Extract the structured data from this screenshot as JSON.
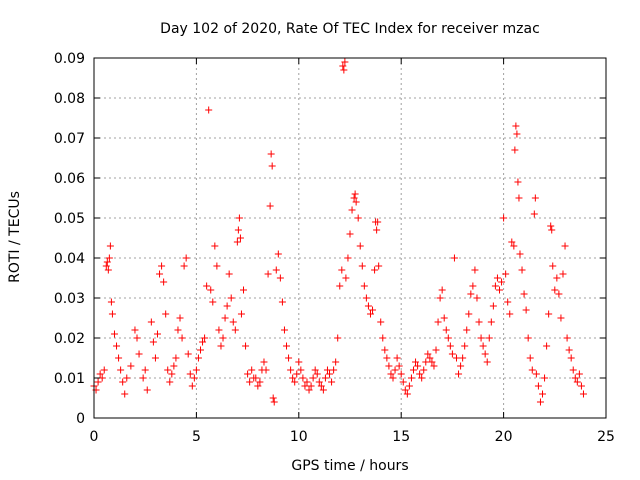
{
  "chart_data": {
    "type": "scatter",
    "title": "Day 102 of 2020, Rate Of TEC Index for receiver mzac",
    "xlabel": "GPS time / hours",
    "ylabel": "ROTI / TECUs",
    "xlim": [
      0,
      25
    ],
    "ylim": [
      0,
      0.09
    ],
    "xticks": [
      0,
      5,
      10,
      15,
      20,
      25
    ],
    "yticks": [
      0,
      0.01,
      0.02,
      0.03,
      0.04,
      0.05,
      0.06,
      0.07,
      0.08,
      0.09
    ],
    "xtick_labels": [
      "0",
      "5",
      "10",
      "15",
      "20",
      "25"
    ],
    "ytick_labels": [
      "0",
      "0.01",
      "0.02",
      "0.03",
      "0.04",
      "0.05",
      "0.06",
      "0.07",
      "0.08",
      "0.09"
    ],
    "grid": true,
    "marker": "plus",
    "color": "#ff0000",
    "series": [
      {
        "points": [
          [
            0.0,
            0.008
          ],
          [
            0.1,
            0.007
          ],
          [
            0.2,
            0.009
          ],
          [
            0.3,
            0.011
          ],
          [
            0.4,
            0.01
          ],
          [
            0.5,
            0.012
          ],
          [
            0.6,
            0.038
          ],
          [
            0.65,
            0.039
          ],
          [
            0.7,
            0.037
          ],
          [
            0.75,
            0.04
          ],
          [
            0.8,
            0.043
          ],
          [
            0.85,
            0.029
          ],
          [
            0.9,
            0.026
          ],
          [
            1.0,
            0.021
          ],
          [
            1.1,
            0.018
          ],
          [
            1.2,
            0.015
          ],
          [
            1.3,
            0.012
          ],
          [
            1.4,
            0.009
          ],
          [
            1.5,
            0.006
          ],
          [
            1.6,
            0.01
          ],
          [
            1.8,
            0.013
          ],
          [
            2.0,
            0.022
          ],
          [
            2.1,
            0.02
          ],
          [
            2.2,
            0.016
          ],
          [
            2.4,
            0.01
          ],
          [
            2.5,
            0.012
          ],
          [
            2.6,
            0.007
          ],
          [
            2.8,
            0.024
          ],
          [
            2.9,
            0.019
          ],
          [
            3.0,
            0.015
          ],
          [
            3.1,
            0.021
          ],
          [
            3.2,
            0.036
          ],
          [
            3.3,
            0.038
          ],
          [
            3.4,
            0.034
          ],
          [
            3.5,
            0.026
          ],
          [
            3.6,
            0.012
          ],
          [
            3.7,
            0.009
          ],
          [
            3.8,
            0.011
          ],
          [
            3.9,
            0.013
          ],
          [
            4.0,
            0.015
          ],
          [
            4.1,
            0.022
          ],
          [
            4.2,
            0.025
          ],
          [
            4.3,
            0.02
          ],
          [
            4.4,
            0.038
          ],
          [
            4.5,
            0.04
          ],
          [
            4.6,
            0.016
          ],
          [
            4.7,
            0.011
          ],
          [
            4.8,
            0.008
          ],
          [
            4.9,
            0.01
          ],
          [
            5.0,
            0.012
          ],
          [
            5.1,
            0.015
          ],
          [
            5.2,
            0.017
          ],
          [
            5.3,
            0.019
          ],
          [
            5.4,
            0.02
          ],
          [
            5.5,
            0.033
          ],
          [
            5.6,
            0.077
          ],
          [
            5.7,
            0.032
          ],
          [
            5.8,
            0.029
          ],
          [
            5.9,
            0.043
          ],
          [
            6.0,
            0.038
          ],
          [
            6.1,
            0.022
          ],
          [
            6.2,
            0.018
          ],
          [
            6.3,
            0.02
          ],
          [
            6.4,
            0.025
          ],
          [
            6.5,
            0.028
          ],
          [
            6.6,
            0.036
          ],
          [
            6.7,
            0.03
          ],
          [
            6.8,
            0.024
          ],
          [
            6.9,
            0.022
          ],
          [
            7.0,
            0.044
          ],
          [
            7.05,
            0.047
          ],
          [
            7.1,
            0.05
          ],
          [
            7.15,
            0.045
          ],
          [
            7.2,
            0.026
          ],
          [
            7.3,
            0.032
          ],
          [
            7.4,
            0.018
          ],
          [
            7.5,
            0.011
          ],
          [
            7.6,
            0.009
          ],
          [
            7.7,
            0.012
          ],
          [
            7.8,
            0.01
          ],
          [
            7.9,
            0.01
          ],
          [
            8.0,
            0.008
          ],
          [
            8.1,
            0.009
          ],
          [
            8.2,
            0.012
          ],
          [
            8.3,
            0.014
          ],
          [
            8.4,
            0.012
          ],
          [
            8.5,
            0.036
          ],
          [
            8.6,
            0.053
          ],
          [
            8.65,
            0.066
          ],
          [
            8.7,
            0.063
          ],
          [
            8.75,
            0.005
          ],
          [
            8.8,
            0.004
          ],
          [
            8.9,
            0.037
          ],
          [
            9.0,
            0.041
          ],
          [
            9.1,
            0.035
          ],
          [
            9.2,
            0.029
          ],
          [
            9.3,
            0.022
          ],
          [
            9.4,
            0.018
          ],
          [
            9.5,
            0.015
          ],
          [
            9.6,
            0.012
          ],
          [
            9.7,
            0.01
          ],
          [
            9.8,
            0.009
          ],
          [
            9.9,
            0.011
          ],
          [
            10.0,
            0.014
          ],
          [
            10.1,
            0.012
          ],
          [
            10.2,
            0.01
          ],
          [
            10.3,
            0.008
          ],
          [
            10.4,
            0.009
          ],
          [
            10.5,
            0.007
          ],
          [
            10.6,
            0.008
          ],
          [
            10.7,
            0.01
          ],
          [
            10.8,
            0.012
          ],
          [
            10.9,
            0.011
          ],
          [
            11.0,
            0.009
          ],
          [
            11.1,
            0.008
          ],
          [
            11.2,
            0.007
          ],
          [
            11.3,
            0.01
          ],
          [
            11.4,
            0.012
          ],
          [
            11.5,
            0.011
          ],
          [
            11.6,
            0.009
          ],
          [
            11.7,
            0.012
          ],
          [
            11.8,
            0.014
          ],
          [
            11.9,
            0.02
          ],
          [
            12.0,
            0.033
          ],
          [
            12.1,
            0.037
          ],
          [
            12.15,
            0.088
          ],
          [
            12.2,
            0.087
          ],
          [
            12.25,
            0.089
          ],
          [
            12.3,
            0.035
          ],
          [
            12.4,
            0.04
          ],
          [
            12.5,
            0.046
          ],
          [
            12.6,
            0.052
          ],
          [
            12.7,
            0.055
          ],
          [
            12.75,
            0.056
          ],
          [
            12.8,
            0.054
          ],
          [
            12.9,
            0.05
          ],
          [
            13.0,
            0.043
          ],
          [
            13.1,
            0.038
          ],
          [
            13.2,
            0.033
          ],
          [
            13.3,
            0.03
          ],
          [
            13.4,
            0.028
          ],
          [
            13.5,
            0.026
          ],
          [
            13.6,
            0.027
          ],
          [
            13.7,
            0.037
          ],
          [
            13.75,
            0.049
          ],
          [
            13.8,
            0.047
          ],
          [
            13.85,
            0.049
          ],
          [
            13.9,
            0.038
          ],
          [
            14.0,
            0.024
          ],
          [
            14.1,
            0.02
          ],
          [
            14.2,
            0.017
          ],
          [
            14.3,
            0.015
          ],
          [
            14.4,
            0.013
          ],
          [
            14.5,
            0.011
          ],
          [
            14.6,
            0.01
          ],
          [
            14.7,
            0.012
          ],
          [
            14.8,
            0.015
          ],
          [
            14.9,
            0.013
          ],
          [
            15.0,
            0.011
          ],
          [
            15.1,
            0.009
          ],
          [
            15.2,
            0.007
          ],
          [
            15.3,
            0.006
          ],
          [
            15.4,
            0.008
          ],
          [
            15.5,
            0.01
          ],
          [
            15.6,
            0.012
          ],
          [
            15.7,
            0.014
          ],
          [
            15.8,
            0.013
          ],
          [
            15.9,
            0.011
          ],
          [
            16.0,
            0.01
          ],
          [
            16.1,
            0.012
          ],
          [
            16.2,
            0.014
          ],
          [
            16.3,
            0.016
          ],
          [
            16.4,
            0.015
          ],
          [
            16.5,
            0.014
          ],
          [
            16.6,
            0.013
          ],
          [
            16.7,
            0.017
          ],
          [
            16.8,
            0.024
          ],
          [
            16.9,
            0.03
          ],
          [
            17.0,
            0.032
          ],
          [
            17.1,
            0.025
          ],
          [
            17.2,
            0.022
          ],
          [
            17.3,
            0.02
          ],
          [
            17.4,
            0.018
          ],
          [
            17.5,
            0.016
          ],
          [
            17.6,
            0.04
          ],
          [
            17.7,
            0.015
          ],
          [
            17.8,
            0.011
          ],
          [
            17.9,
            0.013
          ],
          [
            18.0,
            0.015
          ],
          [
            18.1,
            0.018
          ],
          [
            18.2,
            0.022
          ],
          [
            18.3,
            0.026
          ],
          [
            18.4,
            0.031
          ],
          [
            18.5,
            0.033
          ],
          [
            18.6,
            0.037
          ],
          [
            18.7,
            0.03
          ],
          [
            18.8,
            0.024
          ],
          [
            18.9,
            0.02
          ],
          [
            19.0,
            0.018
          ],
          [
            19.1,
            0.016
          ],
          [
            19.2,
            0.014
          ],
          [
            19.3,
            0.02
          ],
          [
            19.4,
            0.024
          ],
          [
            19.5,
            0.028
          ],
          [
            19.6,
            0.033
          ],
          [
            19.7,
            0.035
          ],
          [
            19.8,
            0.032
          ],
          [
            19.9,
            0.034
          ],
          [
            20.0,
            0.05
          ],
          [
            20.1,
            0.036
          ],
          [
            20.2,
            0.029
          ],
          [
            20.3,
            0.026
          ],
          [
            20.4,
            0.044
          ],
          [
            20.5,
            0.043
          ],
          [
            20.55,
            0.067
          ],
          [
            20.6,
            0.073
          ],
          [
            20.65,
            0.071
          ],
          [
            20.7,
            0.059
          ],
          [
            20.75,
            0.055
          ],
          [
            20.8,
            0.041
          ],
          [
            20.9,
            0.037
          ],
          [
            21.0,
            0.031
          ],
          [
            21.1,
            0.027
          ],
          [
            21.2,
            0.02
          ],
          [
            21.3,
            0.015
          ],
          [
            21.4,
            0.012
          ],
          [
            21.5,
            0.051
          ],
          [
            21.55,
            0.055
          ],
          [
            21.6,
            0.011
          ],
          [
            21.7,
            0.008
          ],
          [
            21.8,
            0.004
          ],
          [
            21.9,
            0.006
          ],
          [
            22.0,
            0.01
          ],
          [
            22.1,
            0.018
          ],
          [
            22.2,
            0.026
          ],
          [
            22.3,
            0.048
          ],
          [
            22.35,
            0.047
          ],
          [
            22.4,
            0.038
          ],
          [
            22.5,
            0.032
          ],
          [
            22.6,
            0.035
          ],
          [
            22.7,
            0.031
          ],
          [
            22.8,
            0.025
          ],
          [
            22.9,
            0.036
          ],
          [
            23.0,
            0.043
          ],
          [
            23.1,
            0.02
          ],
          [
            23.2,
            0.017
          ],
          [
            23.3,
            0.015
          ],
          [
            23.4,
            0.012
          ],
          [
            23.5,
            0.01
          ],
          [
            23.6,
            0.009
          ],
          [
            23.7,
            0.011
          ],
          [
            23.8,
            0.008
          ],
          [
            23.9,
            0.006
          ]
        ]
      }
    ]
  }
}
